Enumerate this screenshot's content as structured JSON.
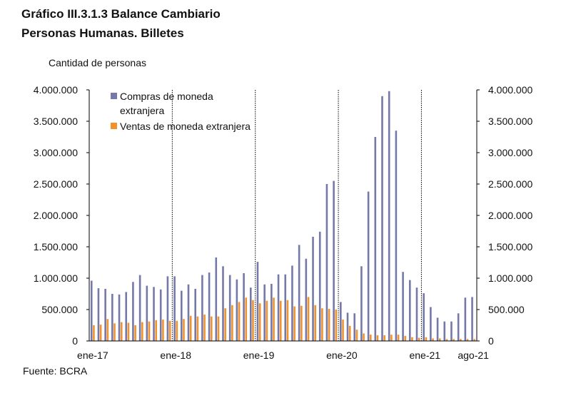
{
  "title_line1": "Gráfico III.3.1.3 Balance Cambiario",
  "title_line2": "Personas Humanas. Billetes",
  "source": "Fuente: BCRA",
  "colors": {
    "compras": "#7579a8",
    "ventas": "#f0922e"
  },
  "chart_data": {
    "type": "bar",
    "ylabel": "Cantidad de personas",
    "ylim": [
      0,
      4000000
    ],
    "yticks": [
      "0",
      "500.000",
      "1.000.000",
      "1.500.000",
      "2.000.000",
      "2.500.000",
      "3.000.000",
      "3.500.000",
      "4.000.000"
    ],
    "secondary_yticks": [
      "0",
      "500.000",
      "1.000.000",
      "1.500.000",
      "2.000.000",
      "2.500.000",
      "3.000.000",
      "3.500.000",
      "4.000.000"
    ],
    "xtick_labels": [
      "ene-17",
      "ene-18",
      "ene-19",
      "ene-20",
      "ene-21",
      "ago-21"
    ],
    "xtick_index": [
      0,
      12,
      24,
      36,
      48,
      55
    ],
    "year_dividers_after_index": [
      11,
      23,
      35,
      47
    ],
    "legend_placement": "top-left",
    "series": [
      {
        "name": "Compras de moneda extranjera",
        "values": [
          960000,
          840000,
          830000,
          750000,
          740000,
          780000,
          940000,
          1050000,
          880000,
          860000,
          820000,
          1030000,
          1030000,
          800000,
          900000,
          830000,
          1050000,
          1090000,
          1330000,
          1190000,
          1050000,
          980000,
          1080000,
          850000,
          1260000,
          900000,
          910000,
          1060000,
          1060000,
          1200000,
          1530000,
          1310000,
          1660000,
          1740000,
          2500000,
          2550000,
          620000,
          450000,
          440000,
          1190000,
          2380000,
          3250000,
          3900000,
          3980000,
          3350000,
          1100000,
          970000,
          850000,
          760000,
          540000,
          370000,
          310000,
          310000,
          440000,
          690000,
          700000
        ]
      },
      {
        "name": "Ventas de moneda extranjera",
        "values": [
          250000,
          260000,
          350000,
          280000,
          300000,
          290000,
          250000,
          300000,
          310000,
          330000,
          340000,
          320000,
          320000,
          350000,
          400000,
          390000,
          420000,
          390000,
          390000,
          520000,
          570000,
          620000,
          690000,
          650000,
          600000,
          640000,
          690000,
          640000,
          650000,
          550000,
          560000,
          700000,
          570000,
          520000,
          510000,
          500000,
          340000,
          240000,
          180000,
          120000,
          100000,
          90000,
          90000,
          100000,
          100000,
          80000,
          60000,
          50000,
          60000,
          40000,
          40000,
          30000,
          30000,
          30000,
          30000,
          30000
        ]
      }
    ]
  }
}
